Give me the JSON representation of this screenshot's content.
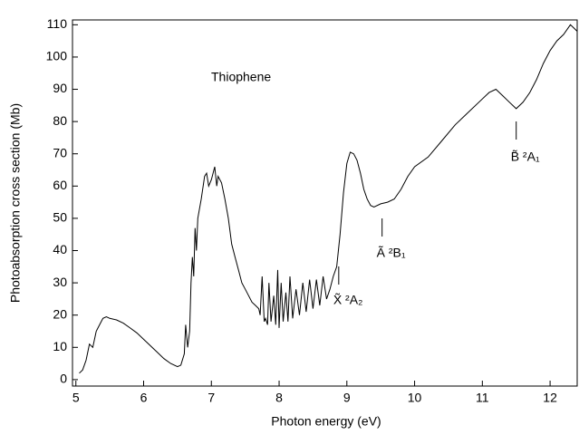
{
  "chart_data": {
    "type": "line",
    "xlabel": "Photon energy (eV)",
    "ylabel": "Photoabsorption cross section (Mb)",
    "annotations": [
      {
        "label": "Thiophene"
      },
      {
        "label": "X̃ ²A₂",
        "x": 8.88
      },
      {
        "label": "Ã ²B₁",
        "x": 9.52
      },
      {
        "label": "B̃ ²A₁",
        "x": 11.5
      }
    ],
    "xlim": [
      4.95,
      12.4
    ],
    "xticks": [
      5,
      6,
      7,
      8,
      9,
      10,
      11,
      12
    ],
    "ylim": [
      -2,
      111.5
    ],
    "yticks": [
      0,
      10,
      20,
      30,
      40,
      50,
      60,
      70,
      80,
      90,
      100,
      110
    ],
    "series": [
      {
        "color": "#000000",
        "x": [
          5.05,
          5.1,
          5.15,
          5.2,
          5.25,
          5.3,
          5.35,
          5.4,
          5.45,
          5.5,
          5.6,
          5.7,
          5.8,
          5.9,
          6.0,
          6.1,
          6.2,
          6.3,
          6.4,
          6.5,
          6.55,
          6.6,
          6.62,
          6.65,
          6.68,
          6.7,
          6.72,
          6.74,
          6.76,
          6.78,
          6.8,
          6.85,
          6.9,
          6.93,
          6.96,
          7.0,
          7.05,
          7.08,
          7.1,
          7.15,
          7.2,
          7.25,
          7.3,
          7.35,
          7.4,
          7.45,
          7.5,
          7.55,
          7.6,
          7.65,
          7.7,
          7.72,
          7.75,
          7.78,
          7.8,
          7.83,
          7.85,
          7.88,
          7.92,
          7.95,
          7.98,
          8.0,
          8.03,
          8.06,
          8.1,
          8.13,
          8.16,
          8.2,
          8.25,
          8.3,
          8.35,
          8.4,
          8.45,
          8.5,
          8.55,
          8.6,
          8.65,
          8.7,
          8.75,
          8.8,
          8.85,
          8.9,
          8.95,
          9.0,
          9.05,
          9.1,
          9.15,
          9.2,
          9.25,
          9.3,
          9.35,
          9.4,
          9.5,
          9.6,
          9.7,
          9.8,
          9.9,
          10.0,
          10.2,
          10.4,
          10.6,
          10.8,
          11.0,
          11.1,
          11.2,
          11.3,
          11.4,
          11.5,
          11.6,
          11.7,
          11.8,
          11.9,
          12.0,
          12.1,
          12.2,
          12.3,
          12.35,
          12.4
        ],
        "values": [
          2,
          3,
          6,
          11,
          10,
          15,
          17,
          19,
          19.5,
          19,
          18.5,
          17.5,
          16,
          14.5,
          12.5,
          10.5,
          8.5,
          6.5,
          5,
          4,
          4.5,
          8,
          17,
          10,
          15,
          30,
          38,
          32,
          47,
          40,
          50,
          56,
          63,
          64,
          60,
          62,
          66,
          60,
          63,
          61,
          56,
          50,
          42,
          38,
          34,
          30,
          28,
          26,
          24,
          23,
          22,
          20,
          32,
          18,
          19,
          17,
          30,
          18,
          26,
          17,
          34,
          16,
          30,
          18,
          27,
          18,
          32,
          19,
          28,
          20,
          30,
          21,
          31,
          22,
          31,
          23,
          32,
          25,
          28,
          32,
          35,
          45,
          58,
          67,
          70.5,
          70,
          68,
          64,
          59,
          56,
          54,
          53.5,
          54.5,
          55,
          56,
          59,
          63,
          66,
          69,
          74,
          79,
          83,
          87,
          89,
          90,
          88,
          86,
          84,
          86,
          89,
          93,
          98,
          102,
          105,
          107,
          110,
          109,
          108
        ]
      }
    ]
  }
}
